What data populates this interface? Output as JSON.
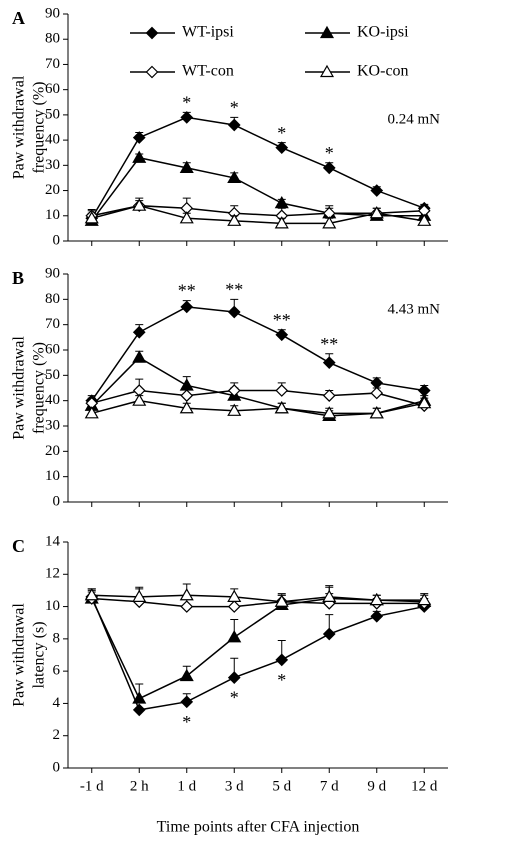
{
  "chart_data": [
    {
      "type": "line",
      "panel": "A",
      "y_label": [
        "Paw withdrawal",
        "frequency (%)"
      ],
      "annotation": "0.24 mN",
      "ylim": [
        0,
        90
      ],
      "yticks": [
        0,
        10,
        20,
        30,
        40,
        50,
        60,
        70,
        80,
        90
      ],
      "significance": [
        null,
        null,
        "*",
        "*",
        "*",
        "*",
        null,
        null
      ],
      "series": [
        {
          "name": "WT-ipsi",
          "marker": "diamond",
          "fill": "#000",
          "values": [
            9,
            41,
            49,
            46,
            37,
            29,
            20,
            13
          ],
          "errors": [
            2,
            2,
            2,
            3,
            2,
            2,
            1.5,
            1.5
          ]
        },
        {
          "name": "KO-ipsi",
          "marker": "triangle",
          "fill": "#000",
          "values": [
            8,
            33,
            29,
            25,
            15,
            11,
            10,
            10
          ],
          "errors": [
            2,
            1.5,
            2,
            2,
            1.5,
            2,
            1.5,
            1.5
          ]
        },
        {
          "name": "WT-con",
          "marker": "diamond",
          "fill": "#fff",
          "values": [
            10,
            14,
            13,
            11,
            10,
            11,
            11,
            12
          ],
          "errors": [
            2.5,
            3,
            4,
            3,
            3,
            3,
            2,
            2
          ]
        },
        {
          "name": "KO-con",
          "marker": "triangle",
          "fill": "#fff",
          "values": [
            9,
            14,
            9,
            8,
            7,
            7,
            11,
            8
          ],
          "errors": [
            3,
            2,
            2,
            2,
            2,
            2,
            2,
            1.5
          ]
        }
      ]
    },
    {
      "type": "line",
      "panel": "B",
      "y_label": [
        "Paw withdrawal",
        "frequency (%)"
      ],
      "annotation": "4.43 mN",
      "ylim": [
        0,
        90
      ],
      "yticks": [
        0,
        10,
        20,
        30,
        40,
        50,
        60,
        70,
        80,
        90
      ],
      "significance": [
        null,
        null,
        "**",
        "**",
        "**",
        "**",
        null,
        null
      ],
      "series": [
        {
          "marker": "diamond",
          "fill": "#000",
          "values": [
            40,
            67,
            77,
            75,
            66,
            55,
            47,
            44
          ],
          "errors": [
            2,
            3,
            2.5,
            5,
            2,
            3.5,
            2,
            2
          ]
        },
        {
          "marker": "triangle",
          "fill": "#000",
          "values": [
            38,
            57,
            46,
            42,
            37,
            34,
            35,
            40
          ],
          "errors": [
            2,
            2.5,
            3.5,
            3,
            2,
            2,
            2,
            2
          ]
        },
        {
          "marker": "diamond",
          "fill": "#fff",
          "values": [
            39,
            44,
            42,
            44,
            44,
            42,
            43,
            38
          ],
          "errors": [
            2,
            4.5,
            3,
            3,
            3,
            2,
            2,
            2
          ]
        },
        {
          "marker": "triangle",
          "fill": "#fff",
          "values": [
            35,
            40,
            37,
            36,
            37,
            35,
            35,
            39
          ],
          "errors": [
            1.5,
            2,
            2,
            2,
            2,
            2,
            2,
            2
          ]
        }
      ]
    },
    {
      "type": "line",
      "panel": "C",
      "y_label": [
        "Paw withdrawal",
        "latency (s)"
      ],
      "x_label": "Time points after CFA injection",
      "categories": [
        "-1 d",
        "2 h",
        "1 d",
        "3 d",
        "5 d",
        "7 d",
        "9 d",
        "12 d"
      ],
      "ylim": [
        0,
        14
      ],
      "yticks": [
        0,
        2,
        4,
        6,
        8,
        10,
        12,
        14
      ],
      "significance": [
        null,
        null,
        "*",
        "*",
        "*",
        null,
        null,
        null
      ],
      "series": [
        {
          "marker": "diamond",
          "fill": "#000",
          "values": [
            10.6,
            3.6,
            4.1,
            5.6,
            6.7,
            8.3,
            9.4,
            10.0
          ],
          "errors": [
            0.5,
            0.1,
            0.5,
            1.2,
            1.2,
            1.2,
            0.3,
            0.2
          ]
        },
        {
          "marker": "triangle",
          "fill": "#000",
          "values": [
            10.5,
            4.3,
            5.7,
            8.1,
            10.1,
            10.5,
            10.4,
            10.3
          ],
          "errors": [
            0.5,
            0.9,
            0.6,
            1.1,
            0.6,
            0.8,
            0.3,
            0.4
          ]
        },
        {
          "marker": "diamond",
          "fill": "#fff",
          "values": [
            10.5,
            10.3,
            10.0,
            10.0,
            10.3,
            10.2,
            10.2,
            10.2
          ],
          "errors": [
            0.4,
            0.8,
            0.5,
            0.5,
            0.5,
            0.6,
            0.3,
            0.3
          ]
        },
        {
          "marker": "triangle",
          "fill": "#fff",
          "values": [
            10.7,
            10.6,
            10.7,
            10.6,
            10.3,
            10.6,
            10.4,
            10.4
          ],
          "errors": [
            0.4,
            0.6,
            0.7,
            0.5,
            0.4,
            0.6,
            0.3,
            0.4
          ]
        }
      ]
    }
  ]
}
